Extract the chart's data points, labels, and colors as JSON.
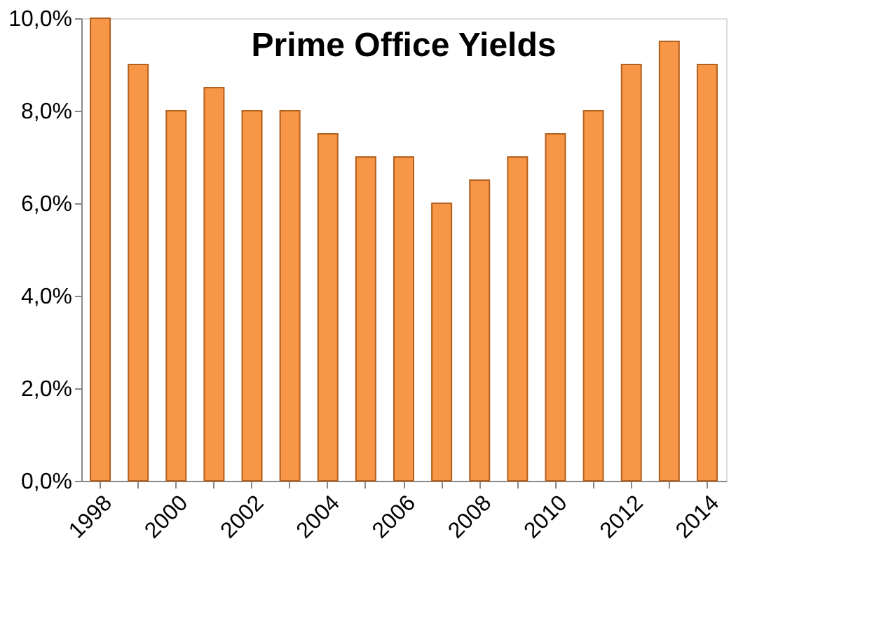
{
  "chart_data": {
    "type": "bar",
    "title": "Prime Office Yields",
    "categories": [
      "1998",
      null,
      "2000",
      null,
      "2002",
      null,
      "2004",
      null,
      "2006",
      null,
      "2008",
      null,
      "2010",
      null,
      "2012",
      null,
      "2014"
    ],
    "values": [
      10.0,
      9.0,
      8.0,
      8.5,
      8.0,
      8.0,
      7.5,
      7.0,
      7.0,
      6.0,
      6.5,
      7.0,
      7.5,
      8.0,
      9.0,
      9.5,
      9.0
    ],
    "color": "#f79646",
    "ylim": [
      0,
      10
    ],
    "yticks": [
      {
        "value": 0,
        "label": "0,0%"
      },
      {
        "value": 2,
        "label": "2,0%"
      },
      {
        "value": 4,
        "label": "4,0%"
      },
      {
        "value": 6,
        "label": "6,0%"
      },
      {
        "value": 8,
        "label": "8,0%"
      },
      {
        "value": 10,
        "label": "10,0%"
      }
    ],
    "grid": false
  }
}
